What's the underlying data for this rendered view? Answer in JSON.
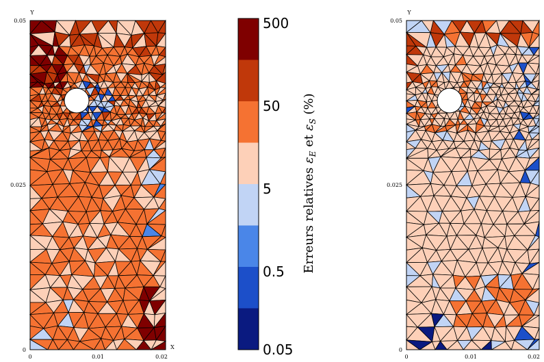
{
  "left_plot": {
    "axis_y_name": "Y",
    "axis_x_name": "X",
    "y_ticks": [
      "0.05",
      "0.025",
      "0"
    ],
    "x_ticks": [
      "0",
      "0.01",
      "0.02"
    ]
  },
  "right_plot": {
    "axis_y_name": "Y",
    "y_ticks": [
      "0.05",
      "0.025",
      "0"
    ],
    "x_ticks": [
      "0",
      "0.01",
      "0.02"
    ]
  },
  "colorbar": {
    "label_prefix": "Erreurs relatives ",
    "label_symbol_1": "ε",
    "label_sub_1": "E",
    "label_mid": " et ",
    "label_symbol_2": "ε",
    "label_sub_2": "S",
    "label_suffix": " (%)",
    "tick_labels": [
      "500",
      "50",
      "5",
      "0.5",
      "0.05"
    ],
    "colors_top_to_bottom": [
      "#7f0000",
      "#c0380a",
      "#f57232",
      "#fdd0b8",
      "#c1d4f5",
      "#4a86e8",
      "#1c4fc9",
      "#0a1a80"
    ]
  },
  "mesh_palette": {
    "very_low": "#0a1a80",
    "low": "#1c4fc9",
    "mid_low": "#4a86e8",
    "light_blue": "#c1d4f5",
    "peach": "#fdd0b8",
    "orange": "#f57232",
    "red_orange": "#c0380a",
    "dark_red": "#7f0000"
  }
}
